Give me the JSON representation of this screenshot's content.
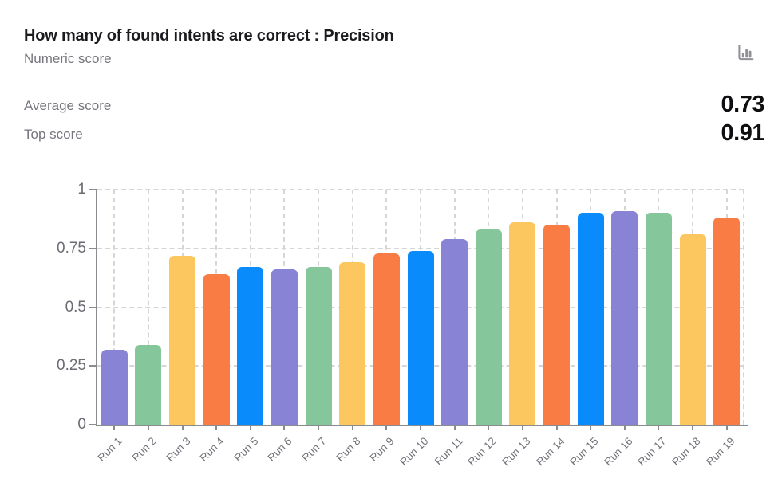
{
  "header": {
    "title": "How many of found intents are correct : Precision",
    "subtitle": "Numeric score",
    "icon": "bar-chart-icon"
  },
  "stats": {
    "average": {
      "label": "Average score",
      "value": "0.73"
    },
    "top": {
      "label": "Top score",
      "value": "0.91"
    }
  },
  "colors": {
    "palette": [
      "#8983d6",
      "#85c79b",
      "#fdc75f",
      "#f97c45",
      "#0a8bfb"
    ],
    "axis": "#8b8b92",
    "grid": "#d6d6d6",
    "tick_label": "#6b6b73",
    "x_label": "#707078",
    "title_text": "#1b1b1f",
    "muted_text": "#76767e",
    "value_text": "#0f0f12",
    "icon_gray": "#8f8f96"
  },
  "chart_data": {
    "type": "bar",
    "title": "How many of found intents are correct : Precision",
    "subtitle": "Numeric score",
    "categories": [
      "Run 1",
      "Run 2",
      "Run 3",
      "Run 4",
      "Run 5",
      "Run 6",
      "Run 7",
      "Run 8",
      "Run 9",
      "Run 10",
      "Run 11",
      "Run 12",
      "Run 13",
      "Run 14",
      "Run 15",
      "Run 16",
      "Run 17",
      "Run 18",
      "Run 19"
    ],
    "values": [
      0.32,
      0.34,
      0.72,
      0.64,
      0.67,
      0.66,
      0.67,
      0.69,
      0.73,
      0.74,
      0.79,
      0.83,
      0.86,
      0.85,
      0.9,
      0.91,
      0.9,
      0.81,
      0.88
    ],
    "average_score": 0.73,
    "top_score": 0.91,
    "xlabel": "",
    "ylabel": "",
    "ylim": [
      0,
      1
    ],
    "yticks": [
      0,
      0.25,
      0.5,
      0.75,
      1
    ],
    "ytick_labels": [
      "0",
      "0.25",
      "0.5",
      "0.75",
      "1"
    ],
    "grid": "dashed, horizontal at yticks and vertical at each category",
    "legend_position": "none",
    "bar_color_cycle": [
      "purple",
      "green",
      "yellow",
      "orange",
      "blue"
    ],
    "x_tick_rotation_deg": -45
  }
}
